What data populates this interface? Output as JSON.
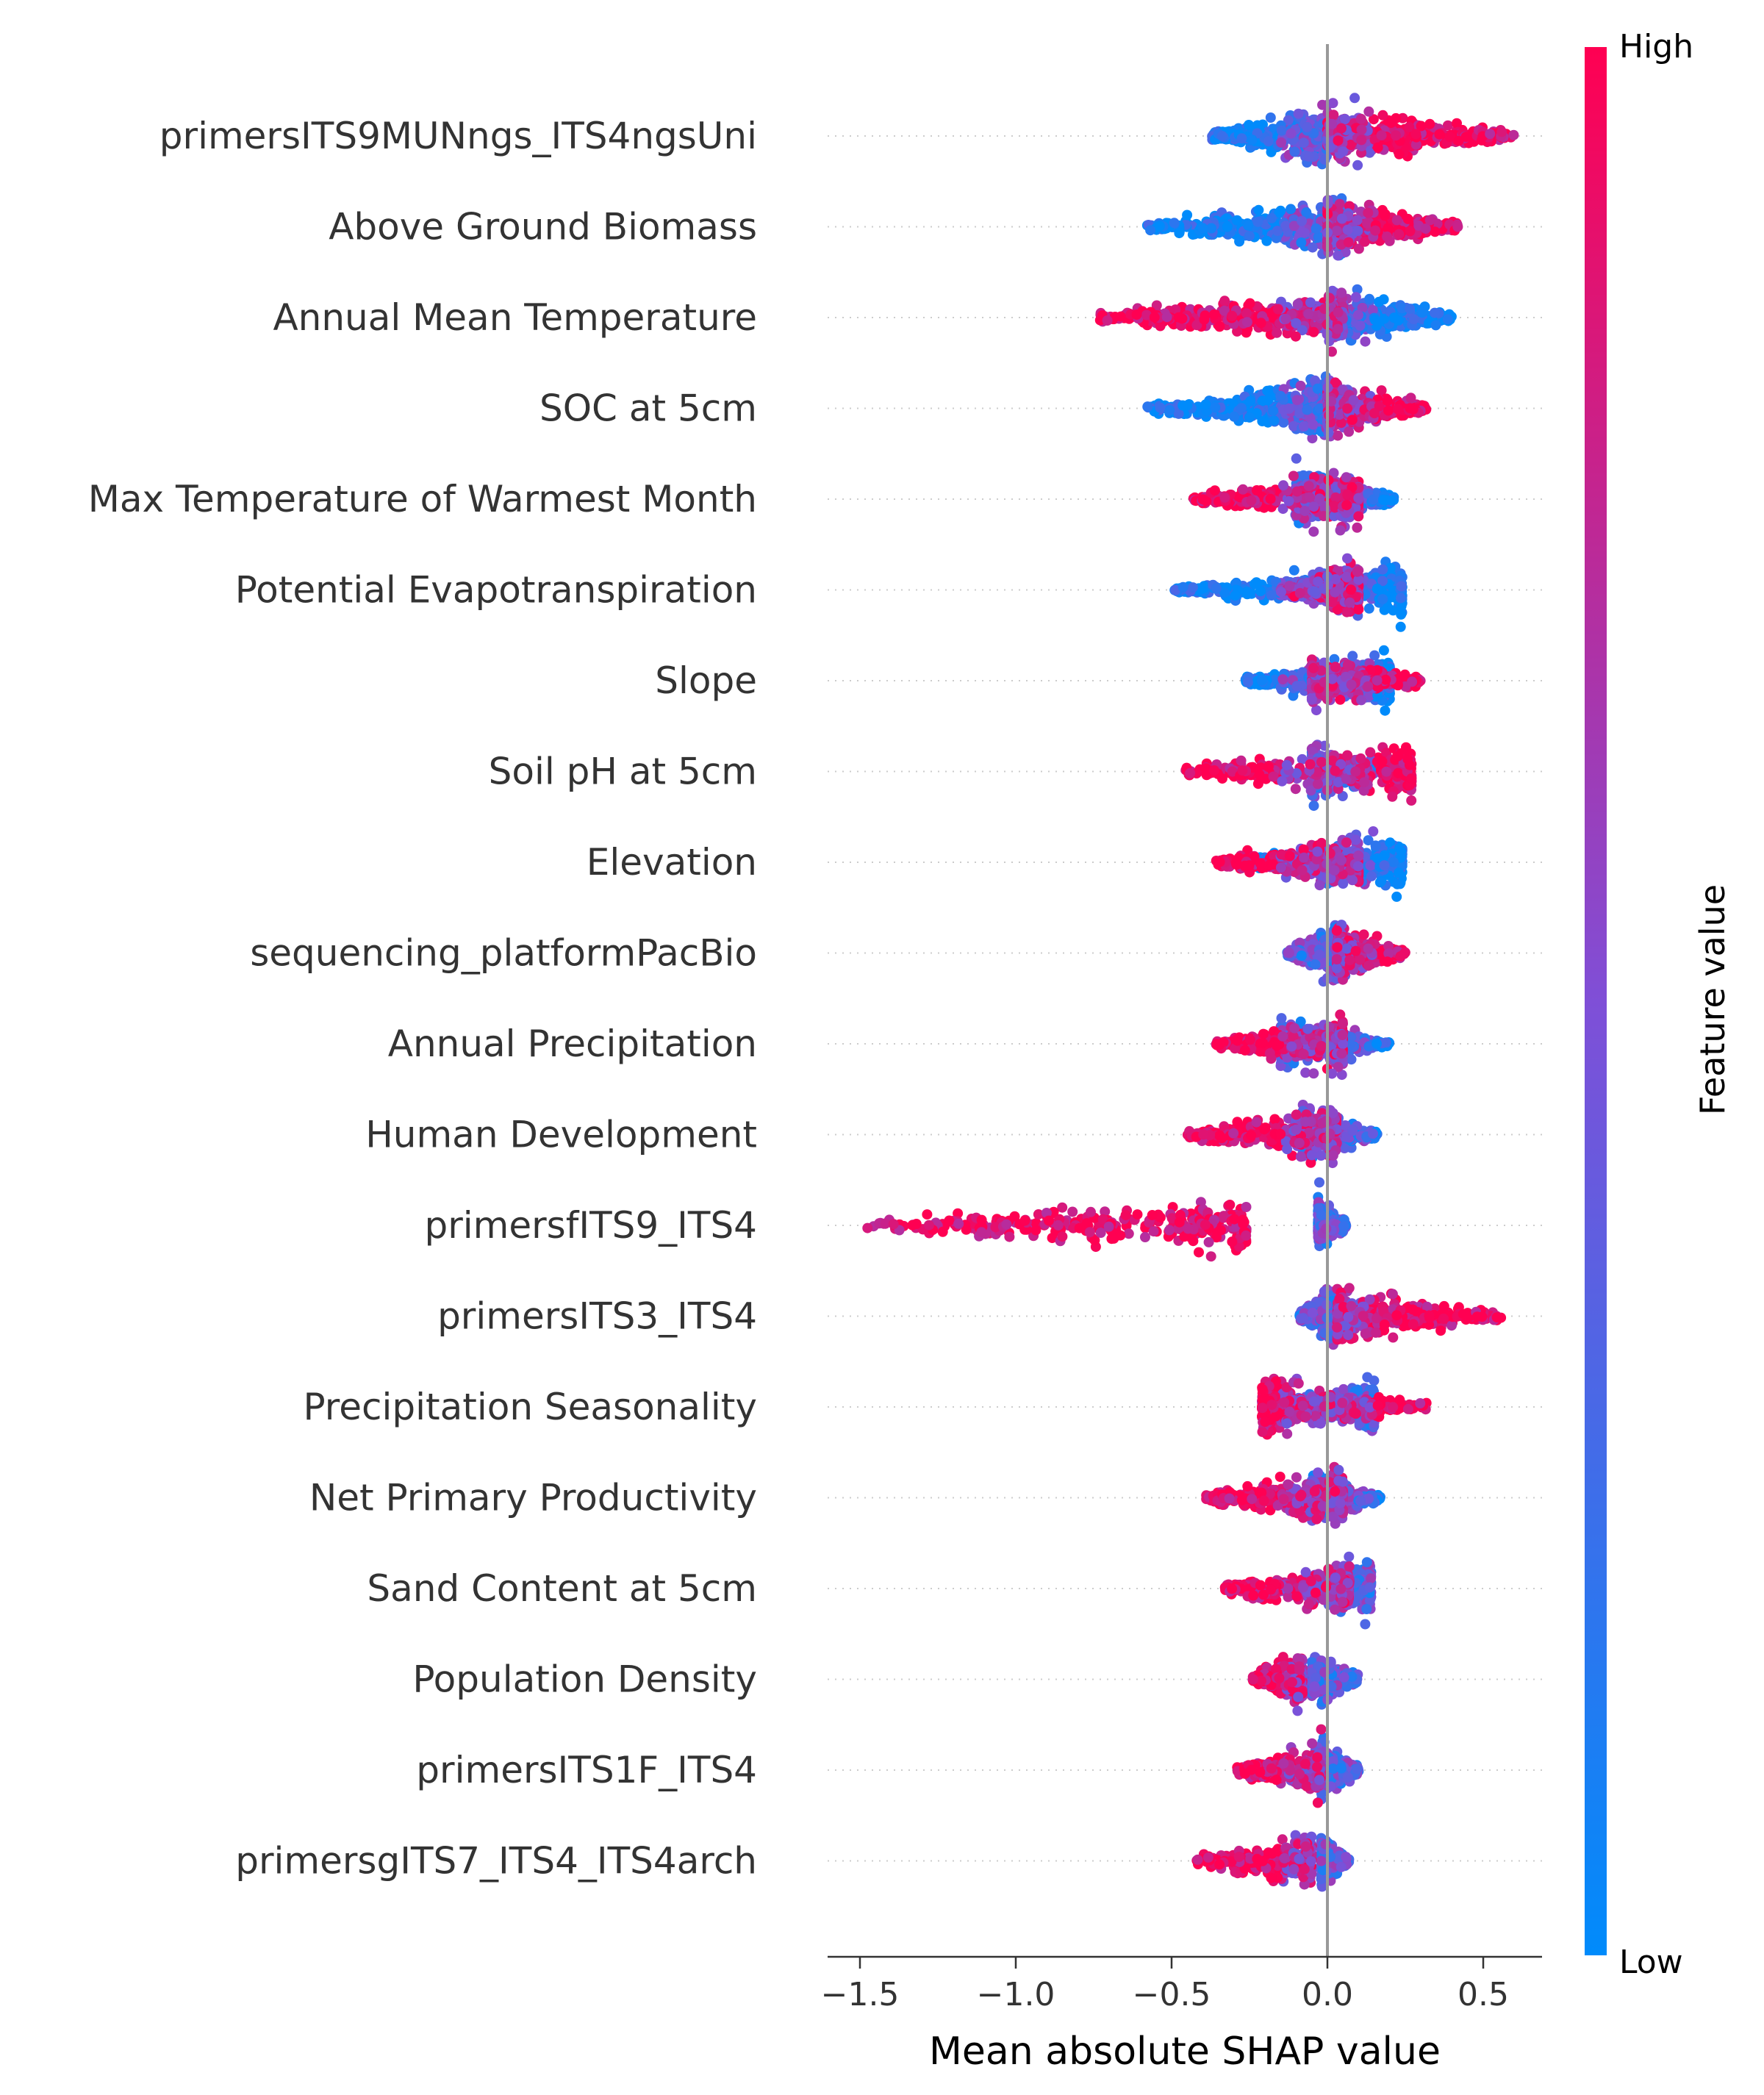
{
  "chart_data": {
    "type": "scatter",
    "subtype": "shap-beeswarm",
    "xlabel": "Mean absolute SHAP value",
    "xlim": [
      -1.6,
      0.7
    ],
    "xticks": [
      {
        "value": -1.5,
        "label": "−1.5"
      },
      {
        "value": -1.0,
        "label": "−1.0"
      },
      {
        "value": -0.5,
        "label": "−0.5"
      },
      {
        "value": 0.0,
        "label": "0.0"
      },
      {
        "value": 0.5,
        "label": "0.5"
      }
    ],
    "colorbar": {
      "title": "Feature value",
      "high_label": "High",
      "low_label": "Low",
      "low_color": "#008bfb",
      "mid_color": "#7f4fd7",
      "high_color": "#ff0052"
    },
    "features": [
      {
        "name": "primersITS9MUNngs_ITS4ngsUni",
        "low_range": [
          -0.37,
          0.0
        ],
        "high_range": [
          0.0,
          0.6
        ],
        "density": 1.0
      },
      {
        "name": "Above Ground Biomass",
        "low_range": [
          -0.58,
          0.05
        ],
        "high_range": [
          0.0,
          0.42
        ],
        "density": 0.9
      },
      {
        "name": "Annual Mean Temperature",
        "low_range": [
          0.0,
          0.4
        ],
        "high_range": [
          -0.74,
          0.05
        ],
        "density": 0.9
      },
      {
        "name": "SOC at 5cm",
        "low_range": [
          -0.58,
          0.0
        ],
        "high_range": [
          0.0,
          0.32
        ],
        "density": 0.85
      },
      {
        "name": "Max Temperature of Warmest Month",
        "low_range": [
          -0.1,
          0.22
        ],
        "high_range": [
          -0.43,
          0.1
        ],
        "density": 0.85
      },
      {
        "name": "Potential Evapotranspiration",
        "low_range": [
          -0.49,
          0.24
        ],
        "high_range": [
          -0.15,
          0.1
        ],
        "density": 0.8
      },
      {
        "name": "Slope",
        "low_range": [
          -0.28,
          0.2
        ],
        "high_range": [
          -0.05,
          0.3
        ],
        "density": 0.85
      },
      {
        "name": "Soil pH at 5cm",
        "low_range": [
          -0.05,
          0.15
        ],
        "high_range": [
          -0.47,
          0.27
        ],
        "density": 0.8
      },
      {
        "name": "Elevation",
        "low_range": [
          -0.26,
          0.24
        ],
        "high_range": [
          -0.36,
          0.1
        ],
        "density": 0.8
      },
      {
        "name": "sequencing_platformPacBio",
        "low_range": [
          -0.13,
          0.03
        ],
        "high_range": [
          0.03,
          0.25
        ],
        "density": 0.75
      },
      {
        "name": "Annual Precipitation",
        "low_range": [
          -0.15,
          0.2
        ],
        "high_range": [
          -0.36,
          0.05
        ],
        "density": 0.8
      },
      {
        "name": "Human Development",
        "low_range": [
          -0.08,
          0.16
        ],
        "high_range": [
          -0.45,
          0.03
        ],
        "density": 0.75
      },
      {
        "name": "primersfITS9_ITS4",
        "low_range": [
          -0.03,
          0.06
        ],
        "high_range": [
          -1.48,
          -0.26
        ],
        "density": 0.7
      },
      {
        "name": "primersITS3_ITS4",
        "low_range": [
          -0.09,
          0.02
        ],
        "high_range": [
          0.03,
          0.56
        ],
        "density": 0.75
      },
      {
        "name": "Precipitation Seasonality",
        "low_range": [
          -0.2,
          0.15
        ],
        "high_range": [
          -0.21,
          0.34
        ],
        "density": 0.8
      },
      {
        "name": "Net Primary Productivity",
        "low_range": [
          -0.05,
          0.17
        ],
        "high_range": [
          -0.39,
          0.05
        ],
        "density": 0.75
      },
      {
        "name": "Sand Content at 5cm",
        "low_range": [
          -0.15,
          0.14
        ],
        "high_range": [
          -0.33,
          0.07
        ],
        "density": 0.75
      },
      {
        "name": "Population Density",
        "low_range": [
          -0.05,
          0.1
        ],
        "high_range": [
          -0.24,
          -0.08
        ],
        "density": 0.65
      },
      {
        "name": "primersITS1F_ITS4",
        "low_range": [
          -0.02,
          0.1
        ],
        "high_range": [
          -0.29,
          -0.02
        ],
        "density": 0.65
      },
      {
        "name": "primersgITS7_ITS4_ITS4arch",
        "low_range": [
          -0.02,
          0.07
        ],
        "high_range": [
          -0.42,
          -0.05
        ],
        "density": 0.65
      }
    ]
  }
}
